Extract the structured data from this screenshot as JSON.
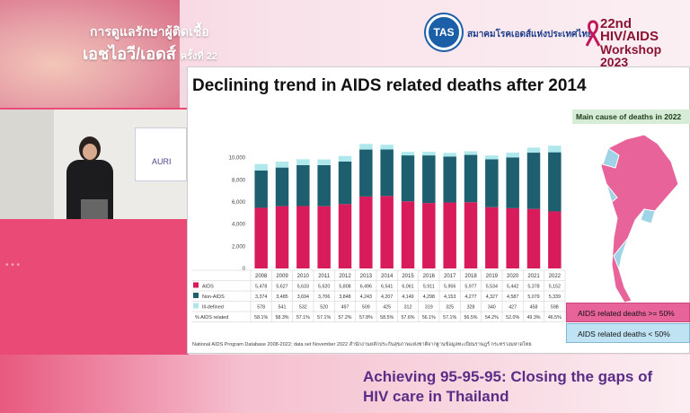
{
  "header": {
    "thai_title_line1": "การดูแลรักษาผู้ติดเชื้อ",
    "thai_title_line2": "เอชไอวี/เอดส์",
    "thai_title_suffix": "ครั้งที่ 22",
    "org_logo_text": "TAS",
    "org_name": "สมาคมโรคเอดส์แห่งประเทศไทย",
    "workshop_line1": "22nd HIV/AIDS",
    "workshop_line2": "Workshop 2023"
  },
  "video": {
    "banner_text": "AURI"
  },
  "slide": {
    "title": "Declining trend in AIDS related deaths after 2014",
    "map_title": "Main cause of deaths in 2022",
    "legend_high": "AIDS related deaths >= 50%",
    "legend_low": "AIDS related deaths < 50%",
    "source": "National AIDS Program Database 2008-2022; data set November 2022 สำนักงานหลักประกันสุขภาพแห่งชาติจากฐานข้อมูลทะเบียนราษฎร์ กระทรวงมหาดไทย"
  },
  "chart_data": {
    "type": "bar",
    "stacked": true,
    "categories": [
      "2008",
      "2009",
      "2010",
      "2011",
      "2012",
      "2013",
      "2014",
      "2015",
      "2016",
      "2017",
      "2018",
      "2019",
      "2020",
      "2021",
      "2022"
    ],
    "series": [
      {
        "name": "AIDS",
        "color": "#d81b5a",
        "values": [
          5478,
          5627,
          5633,
          5620,
          5808,
          6496,
          6541,
          6061,
          5911,
          5956,
          5977,
          5534,
          5442,
          5378,
          5152
        ]
      },
      {
        "name": "Non-AIDS",
        "color": "#1d5f6e",
        "values": [
          3374,
          3485,
          3694,
          3706,
          3848,
          4243,
          4207,
          4149,
          4298,
          4153,
          4277,
          4327,
          4587,
          5079,
          5339
        ]
      },
      {
        "name": "Ill-defined",
        "color": "#aee8ec",
        "values": [
          578,
          541,
          532,
          520,
          497,
          509,
          425,
          312,
          319,
          325,
          328,
          340,
          427,
          458,
          598
        ]
      }
    ],
    "table_rows": [
      {
        "label": "AIDS",
        "values": [
          "5,478",
          "5,627",
          "5,633",
          "5,620",
          "5,808",
          "6,496",
          "6,541",
          "6,061",
          "5,911",
          "5,956",
          "5,977",
          "5,534",
          "5,442",
          "5,378",
          "5,152"
        ]
      },
      {
        "label": "Non-AIDS",
        "values": [
          "3,374",
          "3,485",
          "3,694",
          "3,706",
          "3,848",
          "4,243",
          "4,207",
          "4,149",
          "4,298",
          "4,153",
          "4,277",
          "4,327",
          "4,587",
          "5,079",
          "5,339"
        ]
      },
      {
        "label": "Ill-defined",
        "values": [
          "578",
          "541",
          "532",
          "520",
          "497",
          "509",
          "425",
          "312",
          "319",
          "325",
          "328",
          "340",
          "427",
          "458",
          "598"
        ]
      },
      {
        "label": "% AIDS related",
        "values": [
          "58.1%",
          "58.3%",
          "57.1%",
          "57.1%",
          "57.2%",
          "57.8%",
          "58.5%",
          "57.6%",
          "56.1%",
          "57.1%",
          "56.5%",
          "54.2%",
          "52.0%",
          "49.3%",
          "46.5%"
        ]
      }
    ],
    "y_ticks": [
      "0",
      "2,000",
      "4,000",
      "6,000",
      "8,000",
      "10,000"
    ],
    "ylim": [
      0,
      12000
    ]
  },
  "footer": {
    "subtitle_line1": "Achieving 95-95-95: Closing the gaps of",
    "subtitle_line2": "HIV care in Thailand"
  }
}
